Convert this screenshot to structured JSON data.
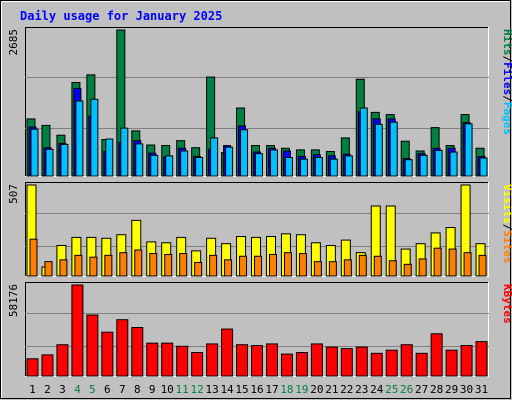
{
  "chart_data": {
    "type": "bar",
    "title": "Daily usage for January 2025",
    "colors": {
      "hits": "#008040",
      "files": "#0000ff",
      "pages": "#00c0ff",
      "visits": "#ffff00",
      "sites": "#ff8000",
      "kbytes": "#ff0000",
      "weekend_label": "#008040",
      "title": "#0000ff",
      "plot_bg": "#c0c0c0",
      "frame_bg": "#c0c0c0"
    },
    "categories": [
      "1",
      "2",
      "3",
      "4",
      "5",
      "6",
      "7",
      "8",
      "9",
      "10",
      "11",
      "12",
      "13",
      "14",
      "15",
      "16",
      "17",
      "18",
      "19",
      "20",
      "21",
      "22",
      "23",
      "24",
      "25",
      "26",
      "27",
      "28",
      "29",
      "30",
      "31"
    ],
    "weekend_days": [
      4,
      5,
      11,
      12,
      18,
      19,
      25,
      26
    ],
    "panels": [
      {
        "id": "hits",
        "ymax_label": "2685",
        "ymax": 2685,
        "side_labels": [
          {
            "text": "Hits",
            "color": "#008040"
          },
          {
            "text": "/",
            "color": "#000000"
          },
          {
            "text": "Files",
            "color": "#0000ff"
          },
          {
            "text": "/",
            "color": "#000000"
          },
          {
            "text": "Pages",
            "color": "#00c0ff"
          }
        ],
        "series": [
          {
            "name": "Hits",
            "values": [
              1050,
              930,
              750,
              1720,
              1860,
              670,
              2685,
              830,
              570,
              560,
              650,
              520,
              1820,
              430,
              1250,
              560,
              560,
              510,
              480,
              480,
              450,
              700,
              1780,
              1170,
              1130,
              640,
              460,
              890,
              560,
              1130,
              510
            ]
          },
          {
            "name": "Files",
            "values": [
              900,
              520,
              600,
              1610,
              1100,
              450,
              620,
              650,
              420,
              350,
              510,
              360,
              490,
              560,
              920,
              440,
              510,
              460,
              360,
              390,
              370,
              400,
              1180,
              1050,
              1050,
              320,
              410,
              510,
              510,
              980,
              360
            ]
          },
          {
            "name": "Pages",
            "values": [
              860,
              490,
              580,
              1380,
              1410,
              680,
              880,
              590,
              380,
              370,
              460,
              340,
              700,
              530,
              850,
              410,
              480,
              340,
              310,
              340,
              310,
              370,
              1250,
              950,
              990,
              300,
              380,
              470,
              440,
              960,
              330
            ]
          }
        ]
      },
      {
        "id": "visits",
        "ymax_label": "507",
        "ymax": 507,
        "side_labels": [
          {
            "text": "Visits",
            "color": "#ffff00"
          },
          {
            "text": "/",
            "color": "#000000"
          },
          {
            "text": "Sites",
            "color": "#ff8000"
          }
        ],
        "series": [
          {
            "name": "Visits",
            "values": [
              507,
              50,
              170,
              215,
              215,
              210,
              230,
              310,
              190,
              185,
              215,
              140,
              210,
              180,
              220,
              215,
              220,
              235,
              230,
              185,
              170,
              200,
              130,
              390,
              390,
              150,
              180,
              240,
              270,
              507,
              180
            ]
          },
          {
            "name": "Sites",
            "values": [
              205,
              80,
              90,
              115,
              105,
              115,
              130,
              145,
              125,
              120,
              125,
              75,
              115,
              90,
              110,
              110,
              120,
              130,
              125,
              80,
              80,
              90,
              115,
              110,
              85,
              65,
              95,
              155,
              150,
              130,
              115
            ]
          }
        ]
      },
      {
        "id": "kbytes",
        "ymax_label": "58176",
        "ymax": 58176,
        "side_labels": [
          {
            "text": "KBytes",
            "color": "#ff0000"
          }
        ],
        "series": [
          {
            "name": "KBytes",
            "values": [
              11000,
              13500,
              20000,
              58176,
              39000,
              28000,
              36000,
              31000,
              21000,
              21000,
              19000,
              15000,
              20500,
              30000,
              20000,
              19500,
              20500,
              14000,
              15000,
              20500,
              18500,
              17500,
              18500,
              14500,
              16500,
              20000,
              14500,
              27000,
              16500,
              19500,
              22000
            ]
          }
        ]
      }
    ]
  }
}
